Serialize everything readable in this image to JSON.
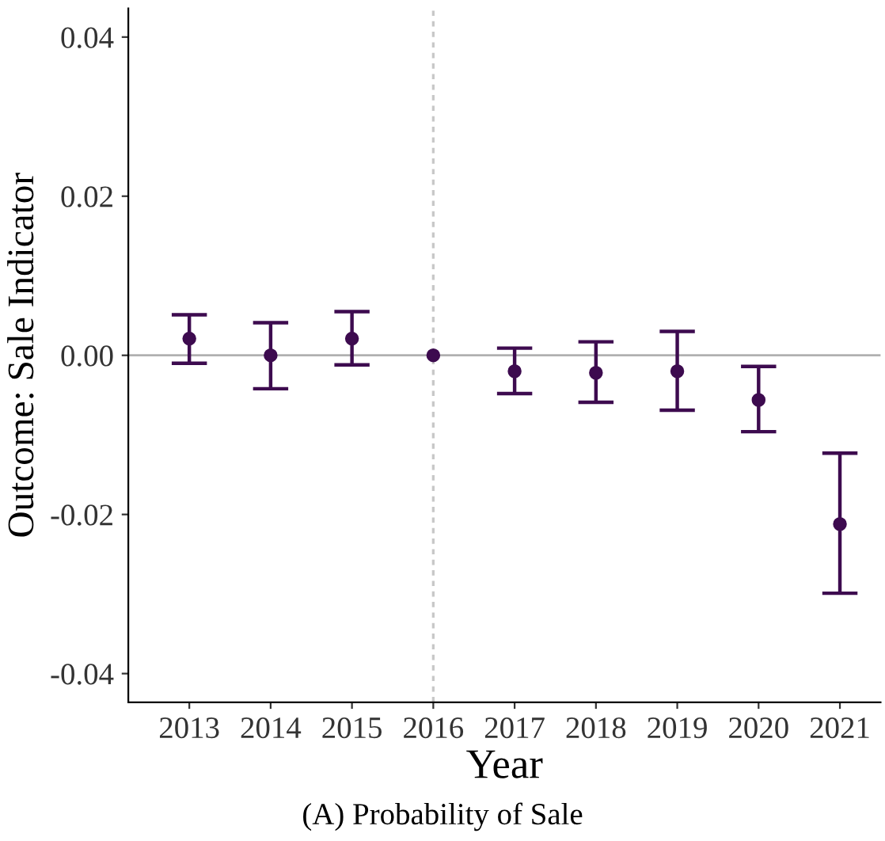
{
  "chart_data": {
    "type": "scatter",
    "xlabel": "Year",
    "ylabel": "Outcome: Sale Indicator",
    "categories": [
      "2013",
      "2014",
      "2015",
      "2016",
      "2017",
      "2018",
      "2019",
      "2020",
      "2021"
    ],
    "series": [
      {
        "color": "#3d0b4f",
        "values": [
          0.0021,
          0.0,
          0.0021,
          0.0,
          -0.002,
          -0.0022,
          -0.002,
          -0.0056,
          -0.0212
        ],
        "errors": [
          [
            -0.001,
            0.0051
          ],
          [
            -0.0042,
            0.0041
          ],
          [
            -0.0012,
            0.0055
          ],
          null,
          [
            -0.0048,
            0.0009
          ],
          [
            -0.0059,
            0.0017
          ],
          [
            -0.0069,
            0.003
          ],
          [
            -0.0096,
            -0.0014
          ],
          [
            -0.0299,
            -0.0123
          ]
        ]
      }
    ],
    "ylim": [
      -0.0436,
      0.0436
    ],
    "yticks": [
      {
        "value": -0.04,
        "label": "-0.04"
      },
      {
        "value": -0.02,
        "label": "-0.02"
      },
      {
        "value": 0,
        "label": "0.00"
      },
      {
        "value": 0.02,
        "label": "0.02"
      },
      {
        "value": 0.04,
        "label": "0.04"
      }
    ],
    "ref_lines": [
      {
        "axis": "y",
        "value": 0,
        "color": "#b0b0b0",
        "line_style": "solid"
      },
      {
        "axis": "x",
        "value": "2016",
        "color": "#c8c8c8",
        "line_style": "dotted"
      }
    ],
    "grid": false,
    "legend": false,
    "marker": "circle",
    "annotations": [
      "(A) Probability of Sale"
    ]
  }
}
